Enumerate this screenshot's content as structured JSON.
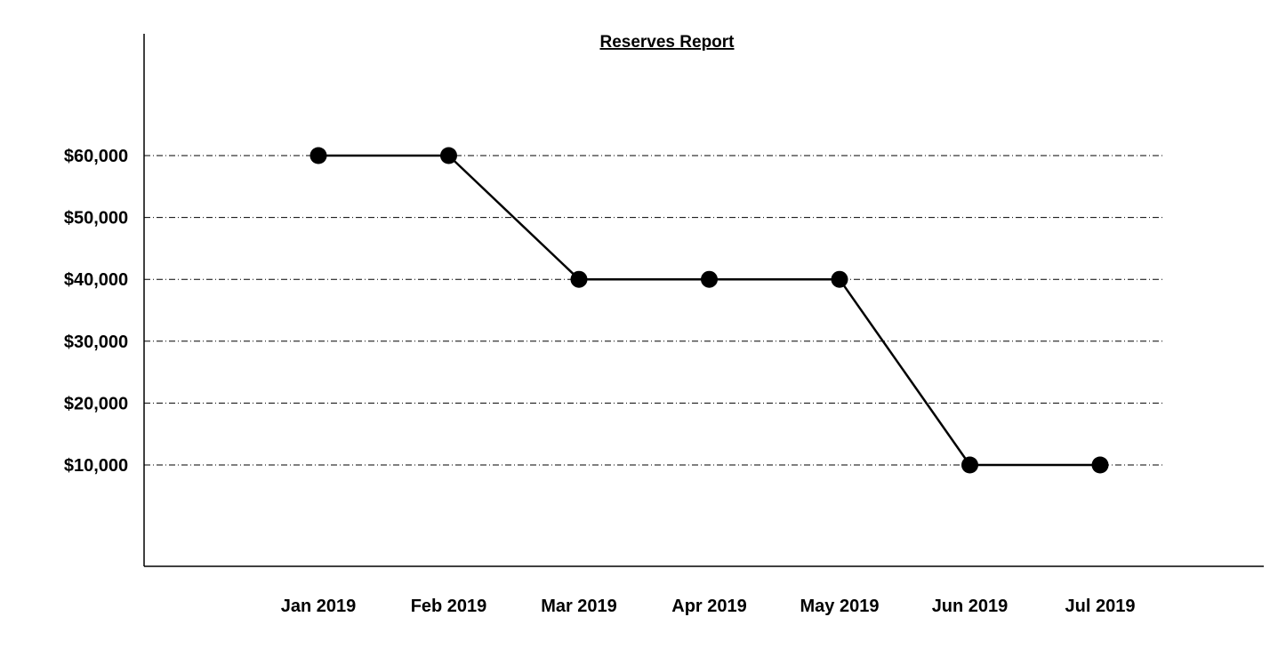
{
  "chart_data": {
    "type": "line",
    "title": "Reserves Report",
    "xlabel": "",
    "ylabel": "",
    "categories": [
      "Jan 2019",
      "Feb 2019",
      "Mar 2019",
      "Apr 2019",
      "May 2019",
      "Jun 2019",
      "Jul 2019"
    ],
    "series": [
      {
        "values": [
          60000,
          60000,
          40000,
          40000,
          40000,
          10000,
          10000
        ],
        "color": "#000000",
        "marker": "circle"
      }
    ],
    "yticks": [
      10000,
      20000,
      30000,
      40000,
      50000,
      60000
    ],
    "ytick_labels": [
      "$10,000",
      "$20,000",
      "$30,000",
      "$40,000",
      "$50,000",
      "$60,000"
    ],
    "ylim": [
      0,
      70000
    ],
    "grid": true,
    "grid_style": "dash-dot",
    "legend": "none"
  }
}
